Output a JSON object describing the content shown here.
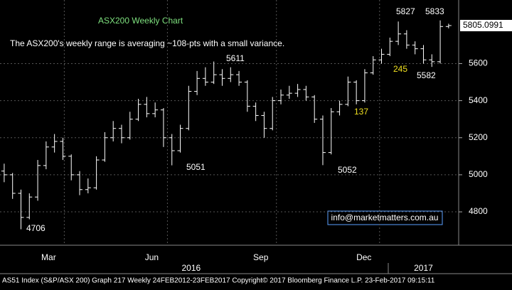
{
  "chart_data": {
    "type": "ohlc",
    "title": "ASX200 Weekly Chart",
    "subtitle": "The ASX200's weekly range is averaging ~108-pts with a small variance.",
    "color": "#ffffff",
    "title_color": "#7ee07e",
    "grid": true,
    "ylim": [
      4620,
      5943
    ],
    "yticks": [
      4800,
      5000,
      5200,
      5400,
      5600
    ],
    "last_price": 5805.0991,
    "xlim": [
      -0.5,
      54.2
    ],
    "xticks": [
      {
        "value": 5.3,
        "label": "Mar"
      },
      {
        "value": 17.6,
        "label": "Jun"
      },
      {
        "value": 30.6,
        "label": "Sep"
      },
      {
        "value": 42.9,
        "label": "Dec"
      }
    ],
    "year_ticks": [
      {
        "value": 22.3,
        "label": "2016"
      },
      {
        "value": 50,
        "label": "2017"
      }
    ],
    "open": [
      5020,
      5000,
      4900,
      4770,
      4880,
      5050,
      5150,
      5180,
      5100,
      5000,
      4920,
      4930,
      5080,
      5200,
      5250,
      5200,
      5300,
      5380,
      5330,
      5350,
      5200,
      5130,
      5250,
      5450,
      5520,
      5500,
      5540,
      5520,
      5540,
      5500,
      5370,
      5320,
      5250,
      5400,
      5430,
      5440,
      5460,
      5420,
      5300,
      5120,
      5340,
      5380,
      5500,
      5400,
      5550,
      5620,
      5650,
      5720,
      5760,
      5700,
      5680,
      5620,
      5610,
      5800
    ],
    "high": [
      5060,
      5010,
      4920,
      4900,
      5080,
      5180,
      5220,
      5200,
      5110,
      5020,
      4980,
      5100,
      5230,
      5290,
      5270,
      5340,
      5410,
      5420,
      5390,
      5360,
      5220,
      5270,
      5480,
      5560,
      5580,
      5611,
      5570,
      5580,
      5560,
      5510,
      5390,
      5340,
      5420,
      5460,
      5480,
      5490,
      5480,
      5430,
      5320,
      5360,
      5400,
      5530,
      5510,
      5570,
      5640,
      5680,
      5740,
      5827,
      5780,
      5720,
      5700,
      5650,
      5833,
      5815
    ],
    "low": [
      4960,
      4870,
      4706,
      4760,
      4860,
      5030,
      5120,
      5080,
      4970,
      4890,
      4900,
      4920,
      5070,
      5180,
      5170,
      5190,
      5290,
      5310,
      5310,
      5150,
      5051,
      5120,
      5240,
      5430,
      5480,
      5490,
      5480,
      5500,
      5480,
      5340,
      5290,
      5200,
      5240,
      5380,
      5410,
      5420,
      5400,
      5280,
      5052,
      5110,
      5320,
      5370,
      5380,
      5390,
      5540,
      5600,
      5640,
      5700,
      5680,
      5650,
      5600,
      5582,
      5600,
      5790
    ],
    "close": [
      5000,
      4900,
      4770,
      4880,
      5050,
      5150,
      5180,
      5100,
      5000,
      4920,
      4930,
      5080,
      5200,
      5250,
      5200,
      5300,
      5380,
      5330,
      5350,
      5200,
      5130,
      5250,
      5450,
      5520,
      5500,
      5540,
      5520,
      5540,
      5500,
      5370,
      5320,
      5250,
      5400,
      5430,
      5440,
      5460,
      5420,
      5300,
      5120,
      5340,
      5380,
      5500,
      5400,
      5550,
      5620,
      5650,
      5720,
      5760,
      5700,
      5680,
      5620,
      5610,
      5800,
      5805.0991
    ],
    "annotations": [
      {
        "text": "4706",
        "color": "#ffffff"
      },
      {
        "text": "5051",
        "color": "#ffffff"
      },
      {
        "text": "5611",
        "color": "#ffffff"
      },
      {
        "text": "5052",
        "color": "#ffffff"
      },
      {
        "text": "137",
        "color": "#f0e020"
      },
      {
        "text": "245",
        "color": "#f0e020"
      },
      {
        "text": "5827",
        "color": "#ffffff"
      },
      {
        "text": "5833",
        "color": "#ffffff"
      },
      {
        "text": "5582",
        "color": "#ffffff"
      }
    ],
    "contact": "info@marketmatters.com.au",
    "footer": "AS51 Index (S&P/ASX 200) Graph 217  Weekly 24FEB2012-23FEB2017    Copyright© 2017 Bloomberg Finance L.P.    23-Feb-2017 09:15:11"
  }
}
